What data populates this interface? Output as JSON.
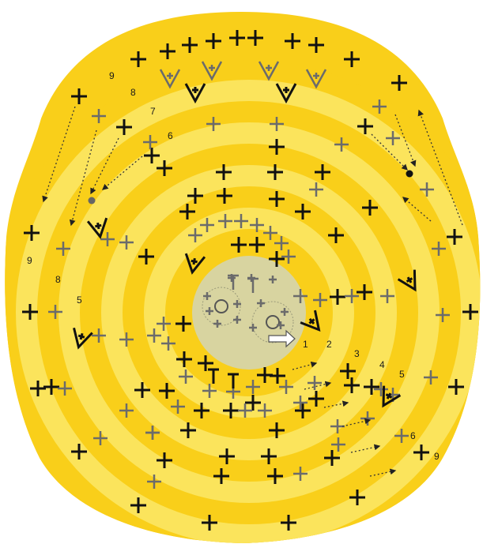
{
  "colors": {
    "background": "#ffffff",
    "outer_yellow": "#f9cf1a",
    "light_yellow": "#fbe45c",
    "center_disc": "#d8d4a0",
    "stitch_black": "#111111",
    "stitch_grey": "#6b6b6b"
  },
  "round_labels": {
    "left_top_9": "9",
    "left_top_8": "8",
    "left_top_7": "7",
    "left_top_6": "6",
    "left_mid_9": "9",
    "left_mid_8": "8",
    "left_mid_5": "5",
    "right_1": "1",
    "right_2": "2",
    "right_3": "3",
    "right_4": "4",
    "right_5": "5",
    "right_6": "6",
    "right_9": "9"
  },
  "icons": {
    "start_arrow": "right-arrow-outline",
    "magic_ring": "circle-ring",
    "increase_symbol": "v-with-cross",
    "single_crochet": "cross-plus",
    "half_double": "t-symbol",
    "end_marker": "filled-dot"
  }
}
